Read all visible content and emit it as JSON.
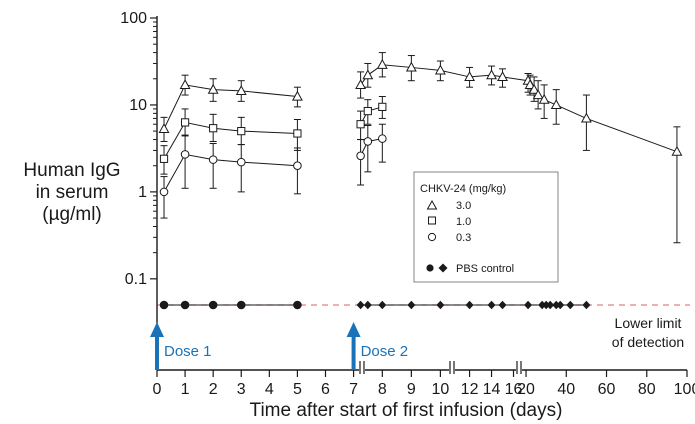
{
  "chart_data": {
    "type": "line",
    "title": "",
    "xlabel": "Time after start of first infusion (days)",
    "ylabel_lines": [
      "Human IgG",
      "in serum",
      "(µg/ml)"
    ],
    "y_scale": "log",
    "ylim": [
      0.03,
      100
    ],
    "y_ticks": [
      {
        "value": 0.1,
        "label": "0.1"
      },
      {
        "value": 1,
        "label": "1"
      },
      {
        "value": 10,
        "label": "10"
      },
      {
        "value": 100,
        "label": "100"
      }
    ],
    "x_axis_segments": [
      {
        "range": [
          0,
          7.3
        ],
        "ticks": [
          0,
          1,
          2,
          3,
          4,
          5,
          6,
          7
        ],
        "labels": [
          "0",
          "1",
          "2",
          "3",
          "4",
          "5",
          "6",
          "7"
        ]
      },
      {
        "range": [
          7.3,
          10.4
        ],
        "ticks": [
          8,
          9,
          10
        ],
        "labels": [
          "8",
          "9",
          "10"
        ]
      },
      {
        "range": [
          10.4,
          16.5
        ],
        "ticks": [
          12,
          14,
          16
        ],
        "labels": [
          "12",
          "14",
          "16"
        ]
      },
      {
        "range": [
          16.5,
          100
        ],
        "ticks": [
          20,
          40,
          60,
          80,
          100
        ],
        "labels": [
          "20",
          "40",
          "60",
          "80",
          "100"
        ]
      }
    ],
    "legend": {
      "title": "CHKV-24 (mg/kg)",
      "entries": [
        "3.0",
        "1.0",
        "0.3"
      ],
      "control_label": "PBS control",
      "placement": "center-right"
    },
    "series": [
      {
        "name": "3.0",
        "marker": "triangle",
        "segments": [
          [
            {
              "x": 0.25,
              "y": 5.3,
              "lo": 3.8,
              "hi": 7.2
            },
            {
              "x": 1,
              "y": 17,
              "lo": 13,
              "hi": 22
            },
            {
              "x": 2,
              "y": 15,
              "lo": 11,
              "hi": 20
            },
            {
              "x": 3,
              "y": 14.5,
              "lo": 11,
              "hi": 19
            },
            {
              "x": 5,
              "y": 12.5,
              "lo": 9.5,
              "hi": 16
            }
          ],
          [
            {
              "x": 7.25,
              "y": 17,
              "lo": 12,
              "hi": 24
            },
            {
              "x": 7.5,
              "y": 22,
              "lo": 16,
              "hi": 30
            },
            {
              "x": 8,
              "y": 29,
              "lo": 21,
              "hi": 40
            },
            {
              "x": 9,
              "y": 27,
              "lo": 19,
              "hi": 37
            },
            {
              "x": 10,
              "y": 25,
              "lo": 19,
              "hi": 32
            },
            {
              "x": 12,
              "y": 21,
              "lo": 16,
              "hi": 27
            },
            {
              "x": 14,
              "y": 22,
              "lo": 17,
              "hi": 28
            },
            {
              "x": 15,
              "y": 21,
              "lo": 16,
              "hi": 26
            },
            {
              "x": 21,
              "y": 19,
              "lo": 14,
              "hi": 23
            },
            {
              "x": 22,
              "y": 17,
              "lo": 13,
              "hi": 22
            },
            {
              "x": 24,
              "y": 15,
              "lo": 11,
              "hi": 21
            },
            {
              "x": 26,
              "y": 13,
              "lo": 9,
              "hi": 19
            },
            {
              "x": 29,
              "y": 11.5,
              "lo": 7,
              "hi": 17
            },
            {
              "x": 35,
              "y": 10,
              "lo": 6,
              "hi": 15
            },
            {
              "x": 50,
              "y": 7,
              "lo": 3,
              "hi": 13
            },
            {
              "x": 95,
              "y": 2.9,
              "lo": 0.26,
              "hi": 5.6
            }
          ]
        ]
      },
      {
        "name": "1.0",
        "marker": "square",
        "segments": [
          [
            {
              "x": 0.25,
              "y": 2.4,
              "lo": 1.6,
              "hi": 3.4
            },
            {
              "x": 1,
              "y": 6.3,
              "lo": 4.4,
              "hi": 9.0
            },
            {
              "x": 2,
              "y": 5.4,
              "lo": 3.8,
              "hi": 7.8
            },
            {
              "x": 3,
              "y": 5.0,
              "lo": 3.5,
              "hi": 7.2
            },
            {
              "x": 5,
              "y": 4.7,
              "lo": 3.0,
              "hi": 6.8
            }
          ],
          [
            {
              "x": 7.25,
              "y": 6.0,
              "lo": 4.0,
              "hi": 8.5
            },
            {
              "x": 7.5,
              "y": 8.5,
              "lo": 6.0,
              "hi": 11.5
            },
            {
              "x": 8,
              "y": 9.5,
              "lo": 7.0,
              "hi": 12.5
            }
          ]
        ]
      },
      {
        "name": "0.3",
        "marker": "circle",
        "segments": [
          [
            {
              "x": 0.25,
              "y": 1.0,
              "lo": 0.5,
              "hi": 1.5
            },
            {
              "x": 1,
              "y": 2.7,
              "lo": 1.1,
              "hi": 4.5
            },
            {
              "x": 2,
              "y": 2.35,
              "lo": 1.1,
              "hi": 3.6
            },
            {
              "x": 3,
              "y": 2.2,
              "lo": 1.0,
              "hi": 3.5
            },
            {
              "x": 5,
              "y": 2.0,
              "lo": 0.95,
              "hi": 3.2
            }
          ],
          [
            {
              "x": 7.25,
              "y": 2.6,
              "lo": 1.2,
              "hi": 4.0
            },
            {
              "x": 7.5,
              "y": 3.8,
              "lo": 1.7,
              "hi": 5.8
            },
            {
              "x": 8,
              "y": 4.1,
              "lo": 2.2,
              "hi": 6.0
            }
          ]
        ]
      },
      {
        "name": "PBS control",
        "marker": "circle-diamond",
        "points": [
          {
            "x": 0.25,
            "y": 0.05,
            "marker": "circle"
          },
          {
            "x": 1,
            "y": 0.05,
            "marker": "circle"
          },
          {
            "x": 2,
            "y": 0.05,
            "marker": "circle"
          },
          {
            "x": 3,
            "y": 0.05,
            "marker": "circle"
          },
          {
            "x": 5,
            "y": 0.05,
            "marker": "circle"
          },
          {
            "x": 7.25,
            "y": 0.05,
            "marker": "diamond"
          },
          {
            "x": 7.5,
            "y": 0.05,
            "marker": "diamond"
          },
          {
            "x": 8,
            "y": 0.05,
            "marker": "diamond"
          },
          {
            "x": 9,
            "y": 0.05,
            "marker": "diamond"
          },
          {
            "x": 10,
            "y": 0.05,
            "marker": "diamond"
          },
          {
            "x": 12,
            "y": 0.05,
            "marker": "diamond"
          },
          {
            "x": 14,
            "y": 0.05,
            "marker": "diamond"
          },
          {
            "x": 15,
            "y": 0.05,
            "marker": "diamond"
          },
          {
            "x": 21,
            "y": 0.05,
            "marker": "diamond"
          },
          {
            "x": 28,
            "y": 0.05,
            "marker": "diamond"
          },
          {
            "x": 30,
            "y": 0.05,
            "marker": "diamond"
          },
          {
            "x": 32,
            "y": 0.05,
            "marker": "diamond"
          },
          {
            "x": 35,
            "y": 0.05,
            "marker": "diamond"
          },
          {
            "x": 37,
            "y": 0.05,
            "marker": "diamond"
          },
          {
            "x": 42,
            "y": 0.05,
            "marker": "diamond"
          },
          {
            "x": 50,
            "y": 0.05,
            "marker": "diamond"
          }
        ]
      }
    ],
    "lower_limit": {
      "y": 0.05,
      "label_lines": [
        "Lower limit",
        "of detection"
      ],
      "color": "#e08080"
    },
    "doses": [
      {
        "x": 0,
        "label": "Dose 1"
      },
      {
        "x": 7,
        "label": "Dose 2"
      }
    ],
    "colors": {
      "series": "#1a1a1a",
      "dose": "#1a73b8",
      "lld": "#e08080"
    }
  }
}
